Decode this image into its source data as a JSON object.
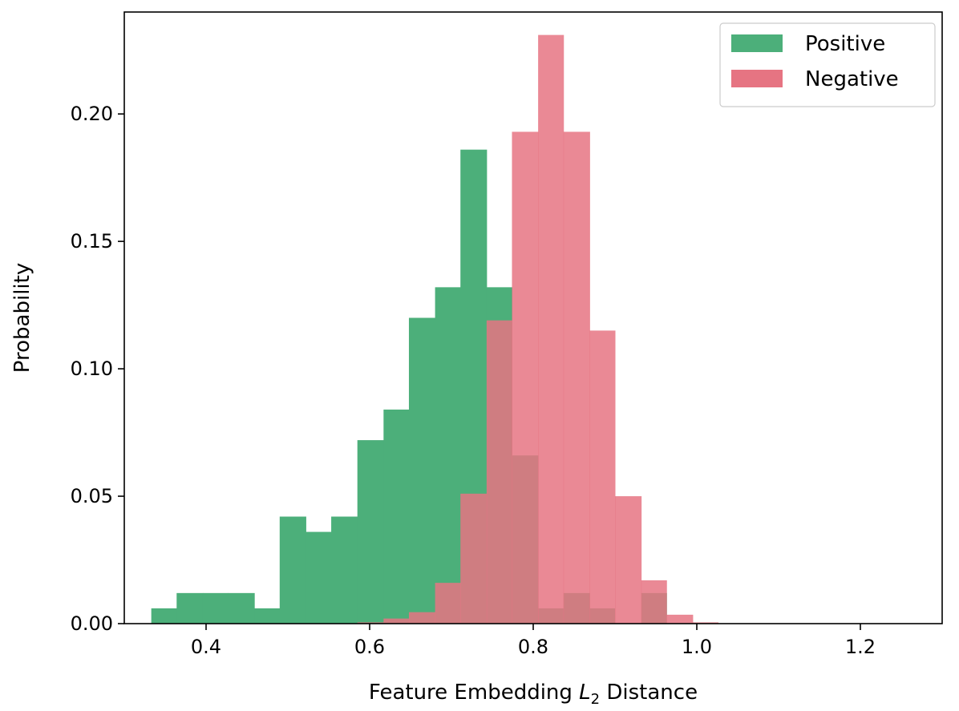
{
  "chart_data": {
    "type": "bar",
    "subtype": "overlapping-histogram",
    "title": "",
    "xlabel_prefix": "Feature Embedding ",
    "xlabel_var": "L",
    "xlabel_sub": "2",
    "xlabel_suffix": " Distance",
    "ylabel": "Probability",
    "xlim": [
      0.3,
      1.3
    ],
    "ylim": [
      0,
      0.24
    ],
    "xticks": [
      0.4,
      0.6,
      0.8,
      1.0,
      1.2
    ],
    "xtick_labels": [
      "0.4",
      "0.6",
      "0.8",
      "1.0",
      "1.2"
    ],
    "yticks": [
      0.0,
      0.05,
      0.1,
      0.15,
      0.2
    ],
    "ytick_labels": [
      "0.00",
      "0.05",
      "0.10",
      "0.15",
      "0.20"
    ],
    "legend_position": "top-right",
    "grid": false,
    "series": [
      {
        "name": "Positive",
        "color": "#4caf7a",
        "bins": [
          {
            "x0": 0.333,
            "x1": 0.364,
            "y": 0.006
          },
          {
            "x0": 0.364,
            "x1": 0.396,
            "y": 0.012
          },
          {
            "x0": 0.396,
            "x1": 0.427,
            "y": 0.012
          },
          {
            "x0": 0.427,
            "x1": 0.459,
            "y": 0.012
          },
          {
            "x0": 0.459,
            "x1": 0.49,
            "y": 0.006
          },
          {
            "x0": 0.49,
            "x1": 0.522,
            "y": 0.042
          },
          {
            "x0": 0.522,
            "x1": 0.553,
            "y": 0.036
          },
          {
            "x0": 0.553,
            "x1": 0.585,
            "y": 0.042
          },
          {
            "x0": 0.585,
            "x1": 0.617,
            "y": 0.072
          },
          {
            "x0": 0.617,
            "x1": 0.648,
            "y": 0.084
          },
          {
            "x0": 0.648,
            "x1": 0.68,
            "y": 0.12
          },
          {
            "x0": 0.68,
            "x1": 0.711,
            "y": 0.132
          },
          {
            "x0": 0.711,
            "x1": 0.743,
            "y": 0.186
          },
          {
            "x0": 0.743,
            "x1": 0.774,
            "y": 0.132
          },
          {
            "x0": 0.774,
            "x1": 0.806,
            "y": 0.066
          },
          {
            "x0": 0.806,
            "x1": 0.837,
            "y": 0.006
          },
          {
            "x0": 0.837,
            "x1": 0.869,
            "y": 0.012
          },
          {
            "x0": 0.869,
            "x1": 0.9,
            "y": 0.006
          },
          {
            "x0": 0.9,
            "x1": 0.932,
            "y": 0.0
          },
          {
            "x0": 0.932,
            "x1": 0.963,
            "y": 0.012
          }
        ]
      },
      {
        "name": "Negative",
        "color": "#e67482",
        "bins": [
          {
            "x0": 0.585,
            "x1": 0.617,
            "y": 0.0005
          },
          {
            "x0": 0.617,
            "x1": 0.648,
            "y": 0.002
          },
          {
            "x0": 0.648,
            "x1": 0.68,
            "y": 0.0045
          },
          {
            "x0": 0.68,
            "x1": 0.711,
            "y": 0.016
          },
          {
            "x0": 0.711,
            "x1": 0.743,
            "y": 0.051
          },
          {
            "x0": 0.743,
            "x1": 0.774,
            "y": 0.119
          },
          {
            "x0": 0.774,
            "x1": 0.806,
            "y": 0.193
          },
          {
            "x0": 0.806,
            "x1": 0.837,
            "y": 0.231
          },
          {
            "x0": 0.837,
            "x1": 0.869,
            "y": 0.193
          },
          {
            "x0": 0.869,
            "x1": 0.9,
            "y": 0.115
          },
          {
            "x0": 0.9,
            "x1": 0.932,
            "y": 0.05
          },
          {
            "x0": 0.932,
            "x1": 0.963,
            "y": 0.017
          },
          {
            "x0": 0.963,
            "x1": 0.995,
            "y": 0.0035
          },
          {
            "x0": 0.995,
            "x1": 1.026,
            "y": 0.0005
          }
        ]
      }
    ]
  }
}
